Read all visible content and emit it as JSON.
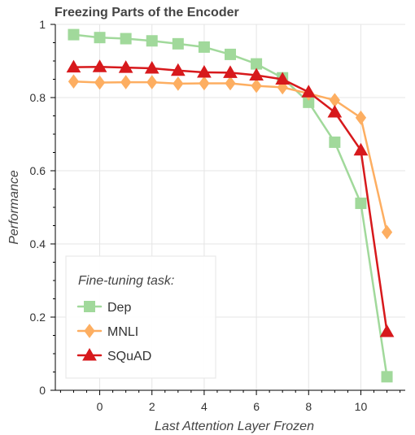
{
  "chart_data": {
    "type": "line",
    "title": "Freezing Parts of the Encoder",
    "xlabel": "Last Attention Layer Frozen",
    "ylabel": "Performance",
    "xlim": [
      -1.7,
      11.7
    ],
    "ylim": [
      0,
      1
    ],
    "x_ticks": [
      0,
      2,
      4,
      6,
      8,
      10
    ],
    "y_ticks": [
      0,
      0.2,
      0.4,
      0.6,
      0.8,
      1
    ],
    "x_tick_labels": [
      "0",
      "2",
      "4",
      "6",
      "8",
      "10"
    ],
    "y_tick_labels": [
      "0",
      "0.2",
      "0.4",
      "0.6",
      "0.8",
      "1"
    ],
    "x": [
      -1,
      0,
      1,
      2,
      3,
      4,
      5,
      6,
      7,
      8,
      9,
      10,
      11
    ],
    "grid": true,
    "legend": {
      "title": "Fine-tuning task:",
      "placement": "bottom-left"
    },
    "series": [
      {
        "name": "Dep",
        "marker": "square",
        "color": "#a1d99b",
        "values": [
          0.972,
          0.964,
          0.961,
          0.955,
          0.947,
          0.938,
          0.918,
          0.892,
          0.854,
          0.787,
          0.678,
          0.511,
          0.037
        ]
      },
      {
        "name": "MNLI",
        "marker": "diamond",
        "color": "#fdae61",
        "values": [
          0.844,
          0.841,
          0.842,
          0.842,
          0.838,
          0.839,
          0.839,
          0.832,
          0.828,
          0.811,
          0.793,
          0.745,
          0.432
        ]
      },
      {
        "name": "SQuAD",
        "marker": "triangle",
        "color": "#d7191c",
        "values": [
          0.883,
          0.884,
          0.882,
          0.88,
          0.874,
          0.869,
          0.868,
          0.861,
          0.85,
          0.815,
          0.76,
          0.656,
          0.16
        ]
      }
    ]
  }
}
